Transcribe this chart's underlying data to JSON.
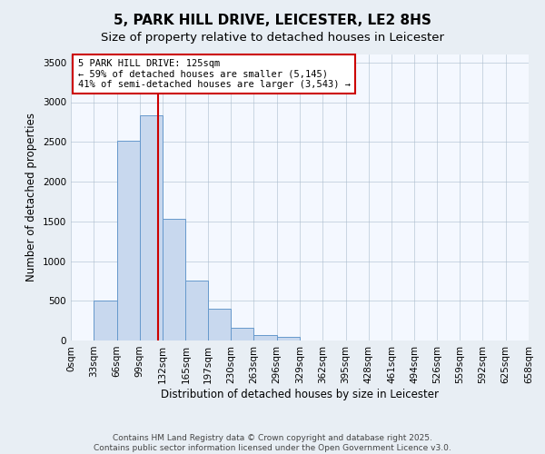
{
  "title": "5, PARK HILL DRIVE, LEICESTER, LE2 8HS",
  "subtitle": "Size of property relative to detached houses in Leicester",
  "bar_values": [
    0,
    500,
    2520,
    2840,
    1530,
    750,
    400,
    155,
    70,
    50,
    0,
    0,
    0,
    0,
    0,
    0,
    0,
    0,
    0,
    0
  ],
  "bin_edges": [
    0,
    33,
    66,
    99,
    132,
    165,
    197,
    230,
    263,
    296,
    329,
    362,
    395,
    428,
    461,
    494,
    526,
    559,
    592,
    625,
    658
  ],
  "bin_labels": [
    "0sqm",
    "33sqm",
    "66sqm",
    "99sqm",
    "132sqm",
    "165sqm",
    "197sqm",
    "230sqm",
    "263sqm",
    "296sqm",
    "329sqm",
    "362sqm",
    "395sqm",
    "428sqm",
    "461sqm",
    "494sqm",
    "526sqm",
    "559sqm",
    "592sqm",
    "625sqm",
    "658sqm"
  ],
  "bar_color": "#c8d8ee",
  "bar_edge_color": "#6699cc",
  "vline_x": 125,
  "vline_color": "#cc0000",
  "annotation_title": "5 PARK HILL DRIVE: 125sqm",
  "annotation_line1": "← 59% of detached houses are smaller (5,145)",
  "annotation_line2": "41% of semi-detached houses are larger (3,543) →",
  "annotation_box_color": "#cc0000",
  "ylabel": "Number of detached properties",
  "xlabel": "Distribution of detached houses by size in Leicester",
  "ylim": [
    0,
    3600
  ],
  "yticks": [
    0,
    500,
    1000,
    1500,
    2000,
    2500,
    3000,
    3500
  ],
  "footer_line1": "Contains HM Land Registry data © Crown copyright and database right 2025.",
  "footer_line2": "Contains public sector information licensed under the Open Government Licence v3.0.",
  "bg_color": "#e8eef4",
  "plot_bg_color": "#f4f8ff",
  "title_fontsize": 11,
  "subtitle_fontsize": 9.5,
  "axis_label_fontsize": 8.5,
  "tick_fontsize": 7.5,
  "footer_fontsize": 6.5
}
